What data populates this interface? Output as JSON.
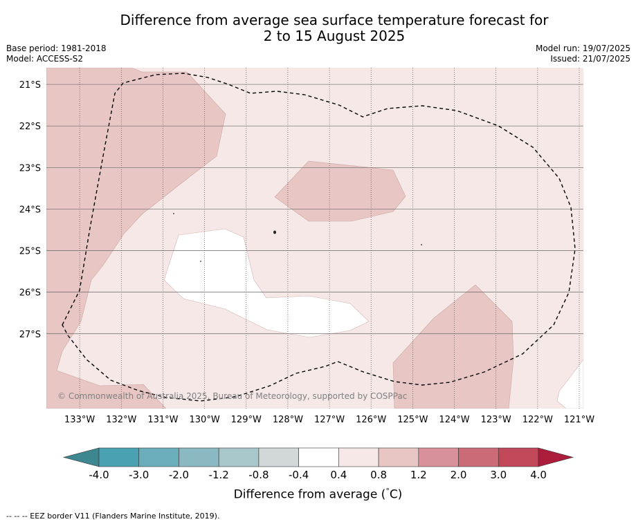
{
  "title": {
    "line1": "Difference from average sea surface temperature forecast for",
    "line2": "2 to 15 August 2025"
  },
  "meta": {
    "base_period": "Base period: 1981-2018",
    "model": "Model: ACCESS-S2",
    "model_run": "Model run: 19/07/2025",
    "issued": "Issued: 21/07/2025"
  },
  "copyright": "© Commonwealth of Australia 2025, Bureau of Meteorology, supported by COSPPac",
  "map": {
    "lon_range": [
      -133.8,
      -120.9
    ],
    "lat_range": [
      -20.6,
      -28.8
    ],
    "lon_ticks": [
      {
        "value": -133,
        "label": "133°W"
      },
      {
        "value": -132,
        "label": "132°W"
      },
      {
        "value": -131,
        "label": "131°W"
      },
      {
        "value": -130,
        "label": "130°W"
      },
      {
        "value": -129,
        "label": "129°W"
      },
      {
        "value": -128,
        "label": "128°W"
      },
      {
        "value": -127,
        "label": "127°W"
      },
      {
        "value": -126,
        "label": "126°W"
      },
      {
        "value": -125,
        "label": "125°W"
      },
      {
        "value": -124,
        "label": "124°W"
      },
      {
        "value": -123,
        "label": "123°W"
      },
      {
        "value": -122,
        "label": "122°W"
      },
      {
        "value": -121,
        "label": "121°W"
      }
    ],
    "lat_ticks": [
      {
        "value": -21,
        "label": "21°S"
      },
      {
        "value": -22,
        "label": "22°S"
      },
      {
        "value": -23,
        "label": "23°S"
      },
      {
        "value": -24,
        "label": "24°S"
      },
      {
        "value": -25,
        "label": "25°S"
      },
      {
        "value": -26,
        "label": "26°S"
      },
      {
        "value": -27,
        "label": "27°S"
      }
    ],
    "colors": {
      "band_0p4_0p8": "#f5e8e7",
      "band_0p8_1p2": "#e8c6c3",
      "band_m0p4_0p4": "#ffffff"
    }
  },
  "colorbar": {
    "label_main": "Difference from average (",
    "label_unit": "°",
    "label_end": "C)",
    "ticks": [
      "-4.0",
      "-3.0",
      "-2.0",
      "-1.2",
      "-0.8",
      "-0.4",
      "0.4",
      "0.8",
      "1.2",
      "2.0",
      "3.0",
      "4.0"
    ],
    "colors": [
      "#49a1b2",
      "#6aadbb",
      "#8ab8c3",
      "#a8c7cb",
      "#d2d7d9",
      "#ffffff",
      "#f5e8e7",
      "#e8c6c3",
      "#d8909a",
      "#cc6b78",
      "#c04858"
    ],
    "extend_low_color": "#3c8790",
    "extend_high_color": "#ab1d3b"
  },
  "footnote": "--  --  -- EEZ border V11 (Flanders Marine Institute, 2019)."
}
